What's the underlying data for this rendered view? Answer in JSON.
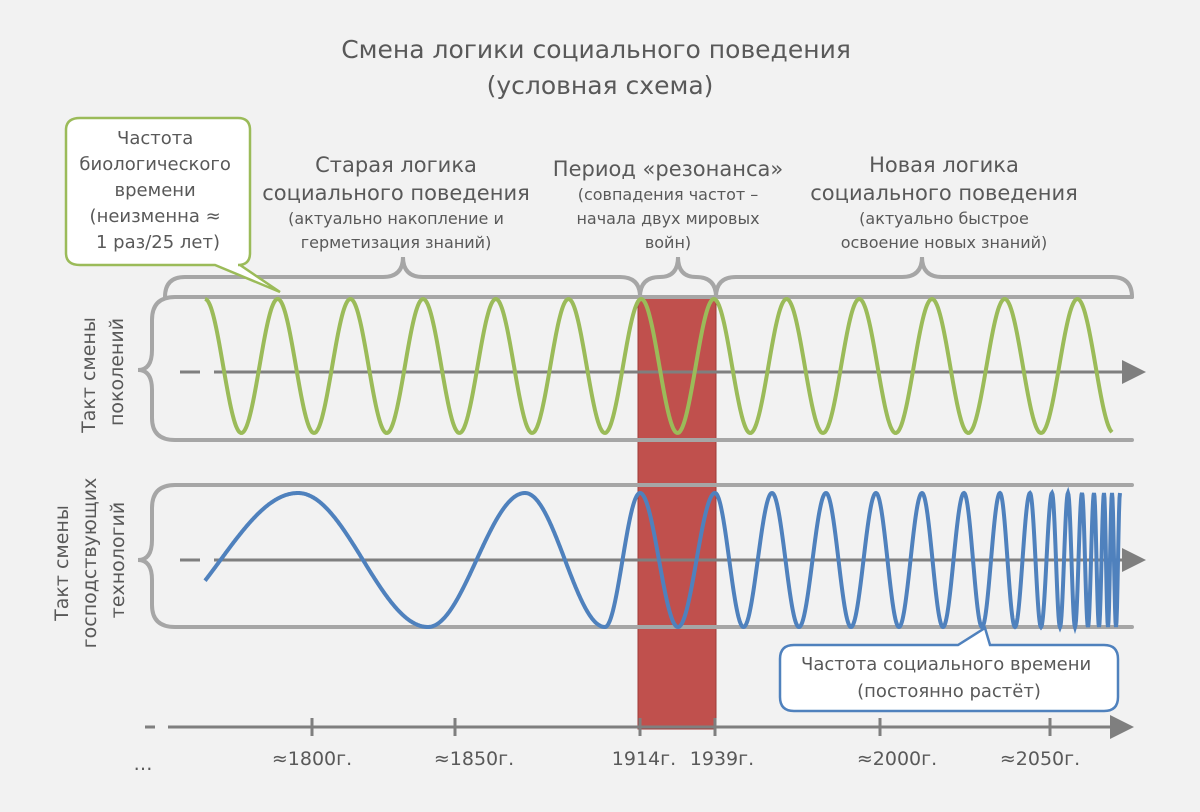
{
  "title": {
    "lines": [
      "Смена логики социального поведения",
      "(условная схема)"
    ]
  },
  "biological_callout": {
    "lines": [
      "Частота",
      "биологического",
      "времени",
      "(неизменна ≈",
      "1 раз/25 лет)"
    ]
  },
  "periods": [
    {
      "heading": [
        "Старая логика",
        "социального поведения"
      ],
      "note": [
        "(актуально накопление и",
        "герметизация знаний)"
      ]
    },
    {
      "heading": [
        "Период «резонанса»"
      ],
      "note": [
        "(совпадения частот –",
        "начала двух мировых",
        "войн)"
      ]
    },
    {
      "heading": [
        "Новая логика",
        "социального поведения"
      ],
      "note": [
        "(актуально быстрое",
        "освоение новых знаний)"
      ]
    }
  ],
  "rows": [
    {
      "label": [
        "Такт смены",
        "поколений"
      ]
    },
    {
      "label": [
        "Такт смены",
        "господствующих",
        "технологий"
      ]
    }
  ],
  "social_callout": {
    "lines": [
      "Частота социального времени",
      "(постоянно растёт)"
    ]
  },
  "timeline": {
    "start": "…",
    "labels": [
      "≈1800г.",
      "≈1850г.",
      "1914г.",
      "1939г.",
      "≈2000г.",
      "≈2050г."
    ]
  }
}
